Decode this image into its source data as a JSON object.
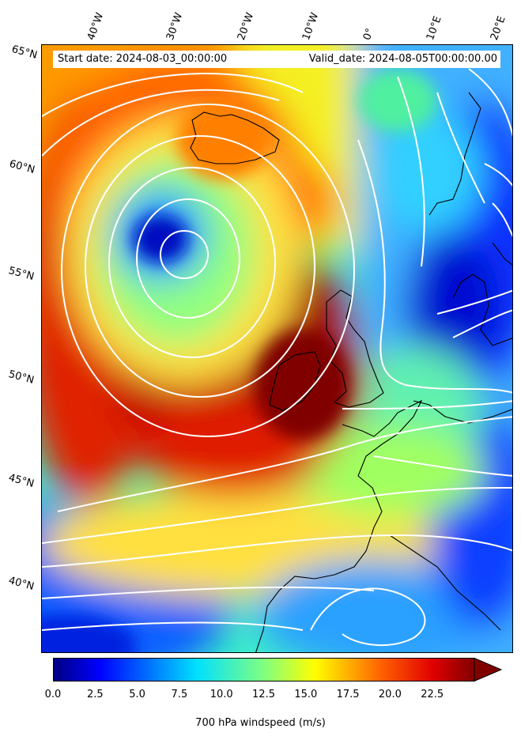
{
  "title_box": {
    "start_date": "Start date: 2024-08-03_00:00:00",
    "valid_date": "Valid_date: 2024-08-05T00:00:00.00"
  },
  "map": {
    "field": "700 hPa windspeed",
    "overlay": "streamlines",
    "lon_labels": [
      "40°W",
      "30°W",
      "20°W",
      "10°W",
      "0°",
      "10°E",
      "20°E"
    ],
    "lat_labels": [
      "65°N",
      "60°N",
      "55°N",
      "50°N",
      "45°N",
      "40°N"
    ]
  },
  "colorbar": {
    "label": "700 hPa windspeed (m/s)",
    "ticks": [
      "0.0",
      "2.5",
      "5.0",
      "7.5",
      "10.0",
      "12.5",
      "15.0",
      "17.5",
      "20.0",
      "22.5"
    ],
    "min": 0,
    "max": 25,
    "extend": "max",
    "colormap": "jet"
  },
  "colors": {
    "streamline": "#ffffff",
    "coastline": "#000000"
  }
}
